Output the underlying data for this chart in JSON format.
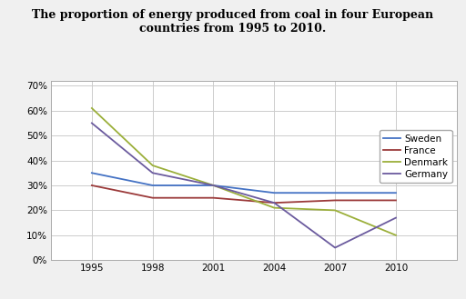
{
  "title": "The proportion of energy produced from coal in four European\ncountries from 1995 to 2010.",
  "x": [
    1995,
    1998,
    2001,
    2004,
    2007,
    2010
  ],
  "series": {
    "Sweden": [
      0.35,
      0.3,
      0.3,
      0.27,
      0.27,
      0.27
    ],
    "France": [
      0.3,
      0.25,
      0.25,
      0.23,
      0.24,
      0.24
    ],
    "Denmark": [
      0.61,
      0.38,
      0.3,
      0.21,
      0.2,
      0.1
    ],
    "Germany": [
      0.55,
      0.35,
      0.3,
      0.23,
      0.05,
      0.17
    ]
  },
  "colors": {
    "Sweden": "#4472C4",
    "France": "#9B3A3A",
    "Denmark": "#9BAF3A",
    "Germany": "#6B5B9E"
  },
  "ylim": [
    0,
    0.72
  ],
  "yticks": [
    0.0,
    0.1,
    0.2,
    0.3,
    0.4,
    0.5,
    0.6,
    0.7
  ],
  "ytick_labels": [
    "0%",
    "10%",
    "20%",
    "30%",
    "40%",
    "50%",
    "60%",
    "70%"
  ],
  "xticks": [
    1995,
    1998,
    2001,
    2004,
    2007,
    2010
  ],
  "background_color": "#f0f0f0",
  "plot_bg_color": "#ffffff",
  "grid_color": "#cccccc",
  "linewidth": 1.3,
  "title_fontsize": 9,
  "legend_fontsize": 7.5,
  "tick_fontsize": 7.5
}
